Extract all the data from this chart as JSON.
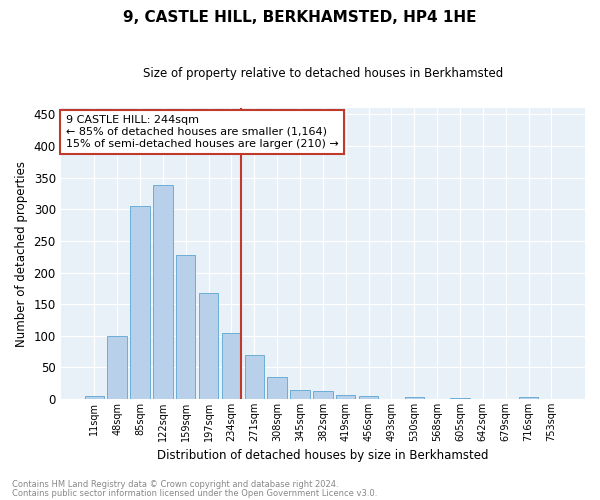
{
  "title": "9, CASTLE HILL, BERKHAMSTED, HP4 1HE",
  "subtitle": "Size of property relative to detached houses in Berkhamsted",
  "xlabel": "Distribution of detached houses by size in Berkhamsted",
  "ylabel": "Number of detached properties",
  "footnote1": "Contains HM Land Registry data © Crown copyright and database right 2024.",
  "footnote2": "Contains public sector information licensed under the Open Government Licence v3.0.",
  "bar_labels": [
    "11sqm",
    "48sqm",
    "85sqm",
    "122sqm",
    "159sqm",
    "197sqm",
    "234sqm",
    "271sqm",
    "308sqm",
    "345sqm",
    "382sqm",
    "419sqm",
    "456sqm",
    "493sqm",
    "530sqm",
    "568sqm",
    "605sqm",
    "642sqm",
    "679sqm",
    "716sqm",
    "753sqm"
  ],
  "bar_values": [
    4,
    99,
    305,
    338,
    228,
    167,
    105,
    69,
    35,
    14,
    13,
    7,
    4,
    0,
    3,
    0,
    1,
    0,
    0,
    3,
    0
  ],
  "bar_color": "#b8d0ea",
  "bar_edge_color": "#6aaed6",
  "background_color": "#e8f0f8",
  "grid_color": "#ffffff",
  "vline_color": "#c0392b",
  "annotation_text": "9 CASTLE HILL: 244sqm\n← 85% of detached houses are smaller (1,164)\n15% of semi-detached houses are larger (210) →",
  "annotation_box_color": "#c0392b",
  "ylim": [
    0,
    460
  ],
  "yticks": [
    0,
    50,
    100,
    150,
    200,
    250,
    300,
    350,
    400,
    450
  ]
}
